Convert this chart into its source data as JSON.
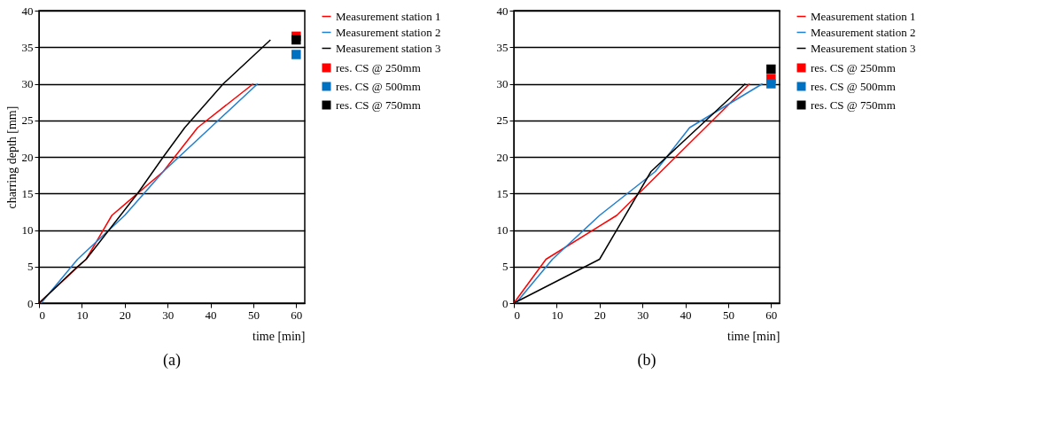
{
  "chart_data": [
    {
      "type": "line",
      "title": "(a)",
      "xlabel": "time  [min]",
      "ylabel": "charring depth [mm]",
      "xlim": [
        0,
        62
      ],
      "ylim": [
        0,
        40
      ],
      "xticks": [
        0,
        10,
        20,
        30,
        40,
        50,
        60
      ],
      "yticks": [
        0,
        5,
        10,
        15,
        20,
        25,
        30,
        35,
        40
      ],
      "grid": "y",
      "legend": "right",
      "series": [
        {
          "name": "Measurement station 1",
          "color": "#ff0000",
          "x": [
            0,
            11,
            17,
            20,
            29,
            37,
            50
          ],
          "values": [
            0,
            6,
            12,
            13.5,
            18,
            24,
            30
          ]
        },
        {
          "name": "Measurement station 2",
          "color": "#1f7fd0",
          "x": [
            0.5,
            9,
            20,
            29,
            40,
            51
          ],
          "values": [
            0,
            6,
            12,
            18,
            24,
            30
          ]
        },
        {
          "name": "Measurement station 3",
          "color": "#000000",
          "x": [
            0,
            9,
            11,
            23,
            29,
            34,
            43,
            54
          ],
          "values": [
            0,
            5,
            6,
            15,
            20,
            24,
            30,
            36
          ]
        },
        {
          "name": "res. CS @ 250mm",
          "type": "scatter",
          "marker": "square",
          "color": "#ff0000",
          "x": [
            60
          ],
          "values": [
            36.5
          ]
        },
        {
          "name": "res. CS @ 500mm",
          "type": "scatter",
          "marker": "square",
          "color": "#0070c0",
          "x": [
            60
          ],
          "values": [
            34
          ]
        },
        {
          "name": "res. CS @ 750mm",
          "type": "scatter",
          "marker": "square",
          "color": "#000000",
          "x": [
            60
          ],
          "values": [
            36
          ]
        }
      ]
    },
    {
      "type": "line",
      "title": "(b)",
      "xlabel": "time  [min]",
      "xlim": [
        0,
        62
      ],
      "ylim": [
        0,
        40
      ],
      "xticks": [
        0,
        10,
        20,
        30,
        40,
        50,
        60
      ],
      "yticks": [
        0,
        5,
        10,
        15,
        20,
        25,
        30,
        35,
        40
      ],
      "grid": "y",
      "legend": "right",
      "series": [
        {
          "name": "Measurement station 1",
          "color": "#ff0000",
          "x": [
            0,
            7.5,
            24,
            55
          ],
          "values": [
            0,
            6,
            12,
            30
          ]
        },
        {
          "name": "Measurement station 2",
          "color": "#1f7fd0",
          "x": [
            0.5,
            9,
            20,
            33,
            41,
            58
          ],
          "values": [
            0,
            6,
            12,
            18,
            24,
            30
          ]
        },
        {
          "name": "Measurement station 3",
          "color": "#000000",
          "x": [
            0,
            20,
            32,
            54
          ],
          "values": [
            0,
            6,
            18,
            30
          ]
        },
        {
          "name": "res. CS @ 250mm",
          "type": "scatter",
          "marker": "square",
          "color": "#ff0000",
          "x": [
            60
          ],
          "values": [
            30.7
          ]
        },
        {
          "name": "res. CS @ 500mm",
          "type": "scatter",
          "marker": "square",
          "color": "#0070c0",
          "x": [
            60
          ],
          "values": [
            30
          ]
        },
        {
          "name": "res. CS @ 750mm",
          "type": "scatter",
          "marker": "square",
          "color": "#000000",
          "x": [
            60
          ],
          "values": [
            32
          ]
        }
      ]
    }
  ]
}
